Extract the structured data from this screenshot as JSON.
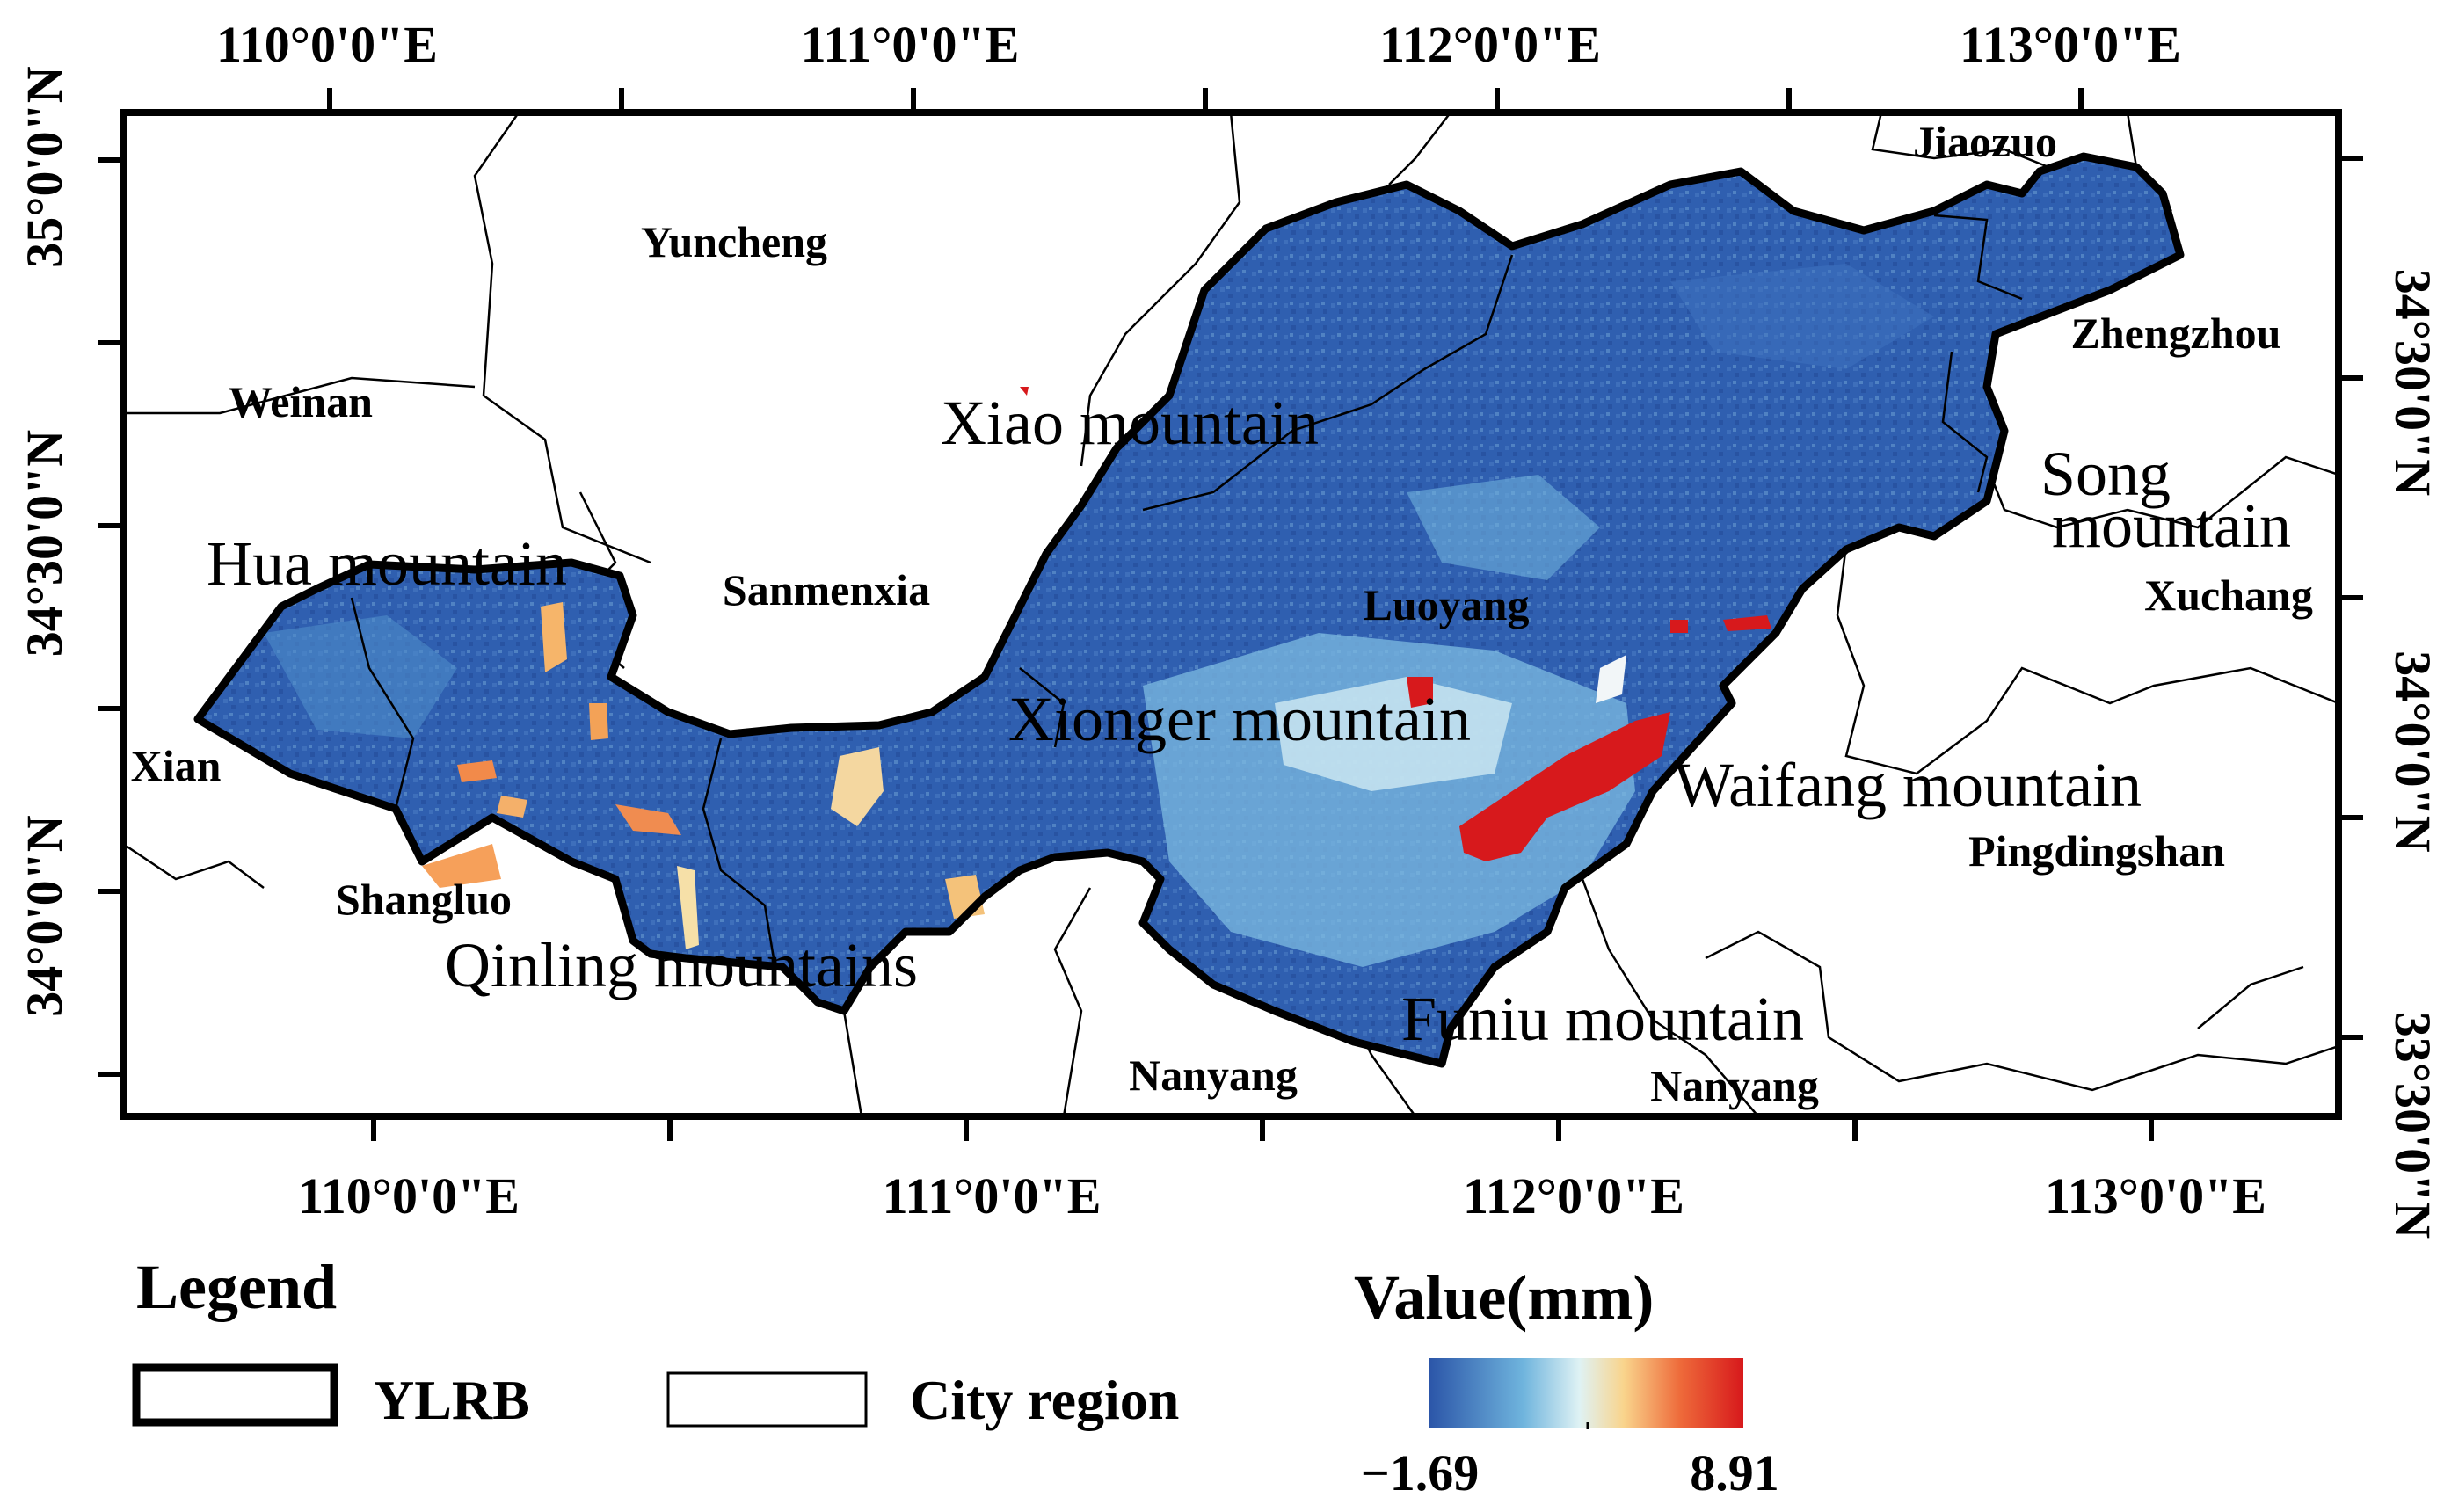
{
  "map": {
    "top_lon_labels": [
      "110°0'0\"E",
      "111°0'0\"E",
      "112°0'0\"E",
      "113°0'0\"E"
    ],
    "bottom_lon_labels": [
      "110°0'0\"E",
      "111°0'0\"E",
      "112°0'0\"E",
      "113°0'0\"E"
    ],
    "left_lat_labels": [
      "35°0'0\"N",
      "34°30'0\"N",
      "34°0'0\"N"
    ],
    "right_lat_labels": [
      "34°30'0\"N",
      "34°0'0\"N",
      "33°30'0\"N"
    ],
    "cities": {
      "yuncheng": "Yuncheng",
      "weinan": "Weinan",
      "sanmenxia": "Sanmenxia",
      "luoyang": "Luoyang",
      "jiaozuo": "Jiaozuo",
      "zhengzhou": "Zhengzhou",
      "xuchang": "Xuchang",
      "xian": "Xian",
      "shangluo": "Shangluo",
      "nanyang_west": "Nanyang",
      "nanyang_east": "Nanyang",
      "pingdingshan": "Pingdingshan"
    },
    "mountains": {
      "xiao": "Xiao mountain",
      "hua": "Hua mountain",
      "xionger": "Xionger mountain",
      "waifang": "Waifang mountain",
      "song_line1": "Song",
      "song_line2": "mountain",
      "qinling": "Qinling mountains",
      "funiu": "Funiu mountain"
    },
    "colors": {
      "low": "#2b55a8",
      "mid_low": "#6fb4dd",
      "mid": "#dff2f4",
      "mid_high": "#f9c67a",
      "high": "#d7191c"
    }
  },
  "legend": {
    "title": "Legend",
    "ylrb_label": "YLRB",
    "city_region_label": "City region",
    "value_title": "Value(mm)",
    "min_value": "−1.69",
    "max_value": "8.91"
  }
}
